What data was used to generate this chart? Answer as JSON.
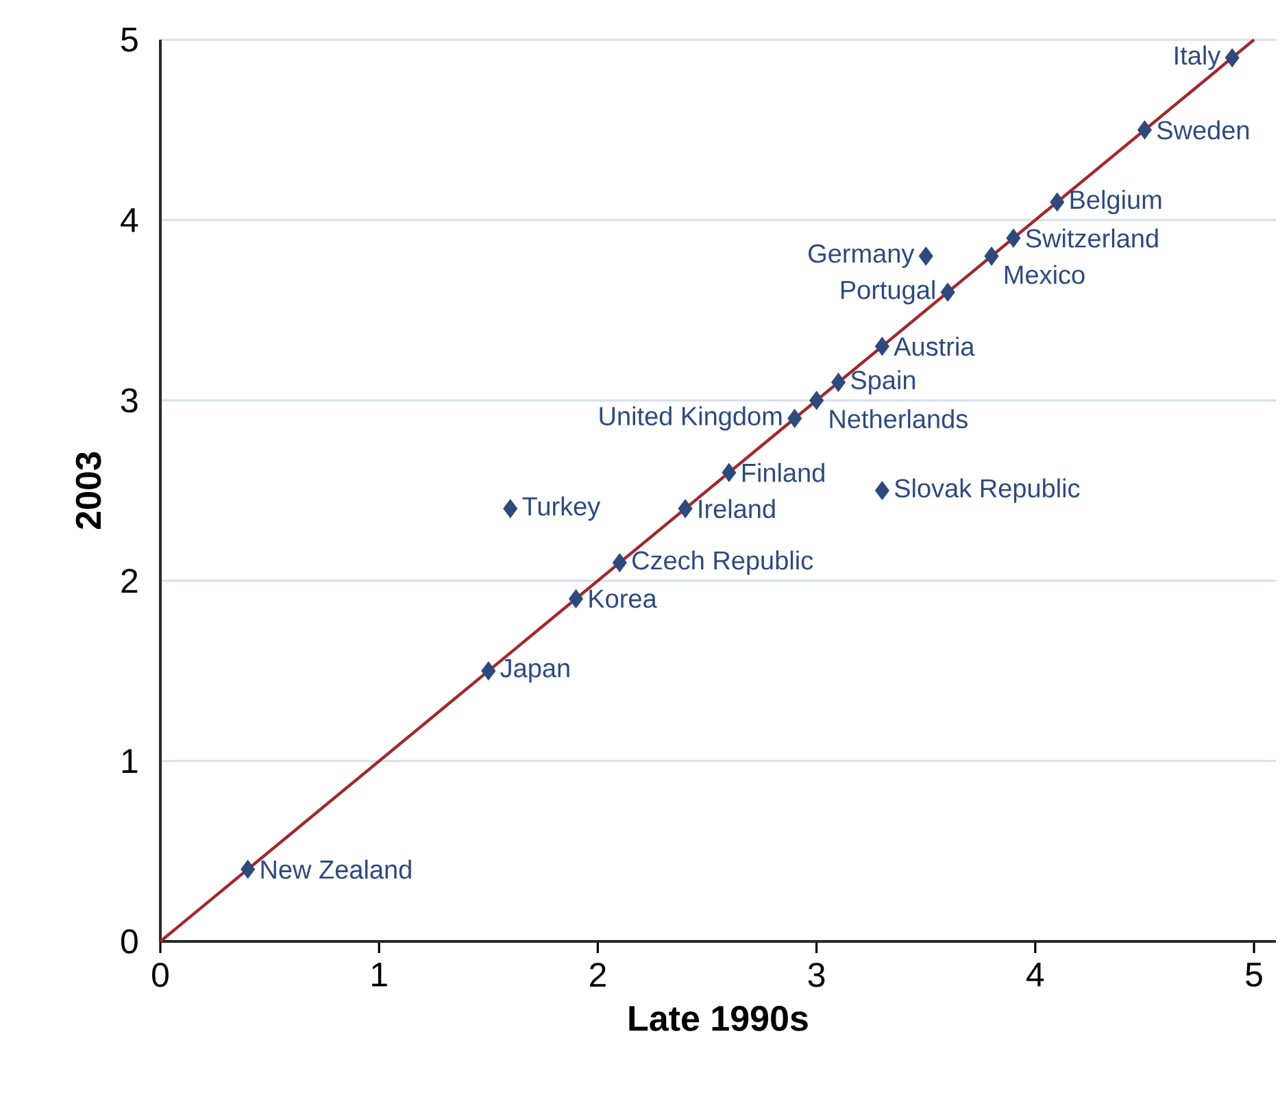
{
  "chart_data": {
    "type": "scatter",
    "xlabel": "Late 1990s",
    "ylabel": "2003",
    "xlim": [
      0,
      5.1
    ],
    "ylim": [
      0,
      5
    ],
    "xticks": [
      0,
      1,
      2,
      3,
      4,
      5
    ],
    "yticks": [
      0,
      1,
      2,
      3,
      4,
      5
    ],
    "grid": "y",
    "marker": "diamond",
    "series": [
      {
        "type": "line",
        "color": "#a0282c",
        "x": [
          0,
          5
        ],
        "values": [
          0,
          5
        ],
        "marker": "none",
        "line_style": "solid"
      },
      {
        "color": "#2e4a7d",
        "x": [
          4.9,
          4.5,
          4.1,
          3.9,
          3.8,
          3.5,
          3.6,
          3.3,
          3.1,
          3.0,
          2.9,
          2.6,
          3.3,
          1.6,
          2.4,
          2.1,
          1.9,
          1.5,
          0.4
        ],
        "values": [
          4.9,
          4.5,
          4.1,
          3.9,
          3.8,
          3.8,
          3.6,
          3.3,
          3.1,
          3.0,
          2.9,
          2.6,
          2.5,
          2.4,
          2.4,
          2.1,
          1.9,
          1.5,
          0.4
        ]
      }
    ],
    "annotations": [
      {
        "text": "Italy",
        "x": 4.9,
        "y": 4.9
      },
      {
        "text": "Sweden",
        "x": 4.5,
        "y": 4.5
      },
      {
        "text": "Belgium",
        "x": 4.1,
        "y": 4.1
      },
      {
        "text": "Switzerland",
        "x": 3.9,
        "y": 3.9
      },
      {
        "text": "Mexico",
        "x": 3.8,
        "y": 3.8
      },
      {
        "text": "Germany",
        "x": 3.5,
        "y": 3.8
      },
      {
        "text": "Portugal",
        "x": 3.6,
        "y": 3.6
      },
      {
        "text": "Austria",
        "x": 3.3,
        "y": 3.3
      },
      {
        "text": "Spain",
        "x": 3.1,
        "y": 3.1
      },
      {
        "text": "Netherlands",
        "x": 3.0,
        "y": 3.0
      },
      {
        "text": "United Kingdom",
        "x": 2.9,
        "y": 2.9
      },
      {
        "text": "Finland",
        "x": 2.6,
        "y": 2.6
      },
      {
        "text": "Slovak Republic",
        "x": 3.3,
        "y": 2.5
      },
      {
        "text": "Turkey",
        "x": 1.6,
        "y": 2.4
      },
      {
        "text": "Ireland",
        "x": 2.4,
        "y": 2.4
      },
      {
        "text": "Czech Republic",
        "x": 2.1,
        "y": 2.1
      },
      {
        "text": "Korea",
        "x": 1.9,
        "y": 1.9
      },
      {
        "text": "Japan",
        "x": 1.5,
        "y": 1.5
      },
      {
        "text": "New Zealand",
        "x": 0.4,
        "y": 0.4
      }
    ]
  }
}
